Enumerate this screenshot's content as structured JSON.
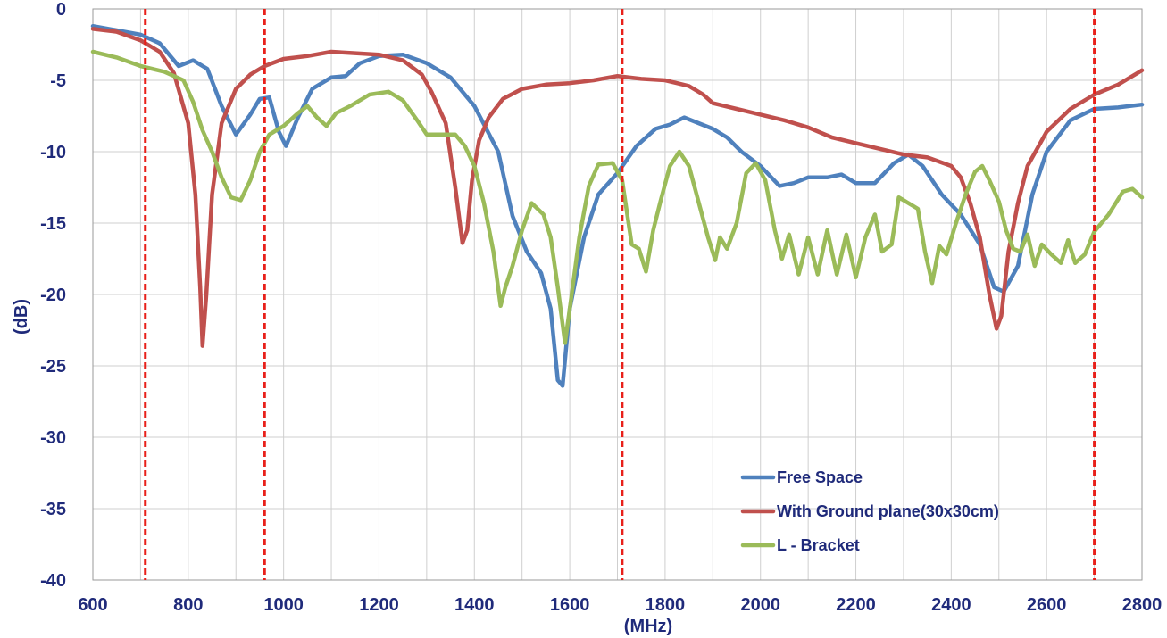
{
  "chart_data": {
    "type": "line",
    "xlabel": "(MHz)",
    "ylabel": "(dB)",
    "xlim": [
      600,
      2800
    ],
    "ylim": [
      -40,
      0
    ],
    "x_ticks": [
      "600",
      "800",
      "1000",
      "1200",
      "1400",
      "1600",
      "1800",
      "2000",
      "2200",
      "2400",
      "2600",
      "2800"
    ],
    "y_ticks": [
      "0",
      "-5",
      "-10",
      "-15",
      "-20",
      "-25",
      "-30",
      "-35",
      "-40"
    ],
    "grid": true,
    "legend_position": "bottom-right",
    "reference_lines_x": [
      710,
      960,
      1710,
      2700
    ],
    "reference_line_color": "#e8201a",
    "series": [
      {
        "name": "Free Space",
        "color": "#4f81bd",
        "points": [
          [
            600,
            -1.2
          ],
          [
            650,
            -1.5
          ],
          [
            700,
            -1.8
          ],
          [
            740,
            -2.4
          ],
          [
            780,
            -4.0
          ],
          [
            810,
            -3.6
          ],
          [
            840,
            -4.2
          ],
          [
            870,
            -6.8
          ],
          [
            900,
            -8.8
          ],
          [
            930,
            -7.4
          ],
          [
            950,
            -6.3
          ],
          [
            970,
            -6.2
          ],
          [
            990,
            -8.6
          ],
          [
            1005,
            -9.6
          ],
          [
            1030,
            -7.6
          ],
          [
            1060,
            -5.6
          ],
          [
            1100,
            -4.8
          ],
          [
            1130,
            -4.7
          ],
          [
            1160,
            -3.8
          ],
          [
            1200,
            -3.3
          ],
          [
            1250,
            -3.2
          ],
          [
            1300,
            -3.8
          ],
          [
            1350,
            -4.8
          ],
          [
            1400,
            -6.8
          ],
          [
            1450,
            -10.0
          ],
          [
            1480,
            -14.5
          ],
          [
            1510,
            -17.0
          ],
          [
            1540,
            -18.5
          ],
          [
            1560,
            -21.0
          ],
          [
            1575,
            -26.0
          ],
          [
            1585,
            -26.4
          ],
          [
            1600,
            -21.0
          ],
          [
            1630,
            -16.0
          ],
          [
            1660,
            -13.0
          ],
          [
            1700,
            -11.5
          ],
          [
            1740,
            -9.6
          ],
          [
            1780,
            -8.4
          ],
          [
            1810,
            -8.1
          ],
          [
            1840,
            -7.6
          ],
          [
            1870,
            -8.0
          ],
          [
            1900,
            -8.4
          ],
          [
            1930,
            -9.0
          ],
          [
            1960,
            -10.0
          ],
          [
            2000,
            -11.0
          ],
          [
            2040,
            -12.4
          ],
          [
            2070,
            -12.2
          ],
          [
            2100,
            -11.8
          ],
          [
            2140,
            -11.8
          ],
          [
            2170,
            -11.6
          ],
          [
            2200,
            -12.2
          ],
          [
            2240,
            -12.2
          ],
          [
            2280,
            -10.8
          ],
          [
            2310,
            -10.2
          ],
          [
            2340,
            -11.0
          ],
          [
            2380,
            -13.0
          ],
          [
            2420,
            -14.4
          ],
          [
            2460,
            -16.5
          ],
          [
            2490,
            -19.5
          ],
          [
            2510,
            -19.8
          ],
          [
            2540,
            -18.0
          ],
          [
            2570,
            -13.0
          ],
          [
            2600,
            -10.0
          ],
          [
            2650,
            -7.8
          ],
          [
            2700,
            -7.0
          ],
          [
            2750,
            -6.9
          ],
          [
            2800,
            -6.7
          ]
        ]
      },
      {
        "name": "With Ground plane(30x30cm)",
        "color": "#c0504d",
        "points": [
          [
            600,
            -1.4
          ],
          [
            650,
            -1.6
          ],
          [
            700,
            -2.2
          ],
          [
            740,
            -3.0
          ],
          [
            770,
            -4.5
          ],
          [
            800,
            -8.0
          ],
          [
            815,
            -13.0
          ],
          [
            825,
            -19.5
          ],
          [
            830,
            -23.6
          ],
          [
            838,
            -20.0
          ],
          [
            850,
            -13.0
          ],
          [
            870,
            -8.0
          ],
          [
            900,
            -5.6
          ],
          [
            930,
            -4.6
          ],
          [
            960,
            -4.0
          ],
          [
            1000,
            -3.5
          ],
          [
            1050,
            -3.3
          ],
          [
            1100,
            -3.0
          ],
          [
            1150,
            -3.1
          ],
          [
            1200,
            -3.2
          ],
          [
            1250,
            -3.6
          ],
          [
            1290,
            -4.6
          ],
          [
            1310,
            -5.8
          ],
          [
            1340,
            -8.0
          ],
          [
            1360,
            -12.5
          ],
          [
            1375,
            -16.4
          ],
          [
            1385,
            -15.5
          ],
          [
            1395,
            -12.0
          ],
          [
            1410,
            -9.2
          ],
          [
            1430,
            -7.6
          ],
          [
            1460,
            -6.3
          ],
          [
            1500,
            -5.6
          ],
          [
            1550,
            -5.3
          ],
          [
            1600,
            -5.2
          ],
          [
            1650,
            -5.0
          ],
          [
            1700,
            -4.7
          ],
          [
            1750,
            -4.9
          ],
          [
            1800,
            -5.0
          ],
          [
            1850,
            -5.4
          ],
          [
            1880,
            -6.0
          ],
          [
            1900,
            -6.6
          ],
          [
            1950,
            -7.0
          ],
          [
            2000,
            -7.4
          ],
          [
            2050,
            -7.8
          ],
          [
            2100,
            -8.3
          ],
          [
            2150,
            -9.0
          ],
          [
            2200,
            -9.4
          ],
          [
            2250,
            -9.8
          ],
          [
            2300,
            -10.2
          ],
          [
            2350,
            -10.4
          ],
          [
            2400,
            -11.0
          ],
          [
            2420,
            -11.8
          ],
          [
            2440,
            -13.6
          ],
          [
            2460,
            -16.0
          ],
          [
            2480,
            -20.0
          ],
          [
            2495,
            -22.4
          ],
          [
            2505,
            -21.5
          ],
          [
            2520,
            -17.0
          ],
          [
            2540,
            -13.6
          ],
          [
            2560,
            -11.0
          ],
          [
            2600,
            -8.6
          ],
          [
            2650,
            -7.0
          ],
          [
            2700,
            -6.0
          ],
          [
            2750,
            -5.3
          ],
          [
            2800,
            -4.3
          ]
        ]
      },
      {
        "name": "L - Bracket",
        "color": "#9bbb59",
        "points": [
          [
            600,
            -3.0
          ],
          [
            650,
            -3.4
          ],
          [
            700,
            -4.0
          ],
          [
            750,
            -4.4
          ],
          [
            790,
            -5.0
          ],
          [
            810,
            -6.5
          ],
          [
            830,
            -8.5
          ],
          [
            850,
            -10.0
          ],
          [
            870,
            -11.8
          ],
          [
            890,
            -13.2
          ],
          [
            910,
            -13.4
          ],
          [
            930,
            -12.0
          ],
          [
            950,
            -10.0
          ],
          [
            970,
            -8.8
          ],
          [
            1000,
            -8.2
          ],
          [
            1030,
            -7.3
          ],
          [
            1050,
            -6.8
          ],
          [
            1070,
            -7.6
          ],
          [
            1090,
            -8.2
          ],
          [
            1110,
            -7.3
          ],
          [
            1140,
            -6.8
          ],
          [
            1180,
            -6.0
          ],
          [
            1220,
            -5.8
          ],
          [
            1250,
            -6.4
          ],
          [
            1280,
            -7.8
          ],
          [
            1300,
            -8.8
          ],
          [
            1330,
            -8.8
          ],
          [
            1360,
            -8.8
          ],
          [
            1380,
            -9.6
          ],
          [
            1400,
            -11.0
          ],
          [
            1420,
            -13.6
          ],
          [
            1440,
            -17.0
          ],
          [
            1455,
            -20.8
          ],
          [
            1465,
            -19.5
          ],
          [
            1480,
            -18.0
          ],
          [
            1500,
            -15.5
          ],
          [
            1520,
            -13.6
          ],
          [
            1545,
            -14.4
          ],
          [
            1560,
            -16.0
          ],
          [
            1575,
            -19.5
          ],
          [
            1590,
            -23.4
          ],
          [
            1600,
            -21.0
          ],
          [
            1620,
            -16.0
          ],
          [
            1640,
            -12.4
          ],
          [
            1660,
            -10.9
          ],
          [
            1690,
            -10.8
          ],
          [
            1710,
            -12.0
          ],
          [
            1730,
            -16.5
          ],
          [
            1745,
            -16.8
          ],
          [
            1760,
            -18.4
          ],
          [
            1775,
            -15.5
          ],
          [
            1790,
            -13.5
          ],
          [
            1810,
            -11.0
          ],
          [
            1830,
            -10.0
          ],
          [
            1850,
            -11.0
          ],
          [
            1870,
            -13.5
          ],
          [
            1890,
            -16.0
          ],
          [
            1905,
            -17.6
          ],
          [
            1915,
            -16.0
          ],
          [
            1930,
            -16.8
          ],
          [
            1950,
            -15.0
          ],
          [
            1970,
            -11.5
          ],
          [
            1990,
            -10.8
          ],
          [
            2010,
            -12.0
          ],
          [
            2030,
            -15.5
          ],
          [
            2045,
            -17.5
          ],
          [
            2060,
            -15.8
          ],
          [
            2080,
            -18.6
          ],
          [
            2100,
            -16.0
          ],
          [
            2120,
            -18.6
          ],
          [
            2140,
            -15.5
          ],
          [
            2160,
            -18.6
          ],
          [
            2180,
            -15.8
          ],
          [
            2200,
            -18.8
          ],
          [
            2220,
            -16.0
          ],
          [
            2240,
            -14.4
          ],
          [
            2255,
            -17.0
          ],
          [
            2275,
            -16.5
          ],
          [
            2290,
            -13.2
          ],
          [
            2310,
            -13.6
          ],
          [
            2330,
            -14.0
          ],
          [
            2345,
            -17.0
          ],
          [
            2360,
            -19.2
          ],
          [
            2375,
            -16.6
          ],
          [
            2390,
            -17.2
          ],
          [
            2410,
            -15.0
          ],
          [
            2430,
            -13.0
          ],
          [
            2450,
            -11.4
          ],
          [
            2465,
            -11.0
          ],
          [
            2480,
            -12.0
          ],
          [
            2500,
            -13.5
          ],
          [
            2515,
            -15.5
          ],
          [
            2530,
            -16.8
          ],
          [
            2545,
            -17.0
          ],
          [
            2560,
            -15.8
          ],
          [
            2575,
            -18.0
          ],
          [
            2590,
            -16.5
          ],
          [
            2610,
            -17.2
          ],
          [
            2630,
            -17.8
          ],
          [
            2645,
            -16.2
          ],
          [
            2660,
            -17.8
          ],
          [
            2680,
            -17.2
          ],
          [
            2700,
            -15.6
          ],
          [
            2730,
            -14.4
          ],
          [
            2760,
            -12.8
          ],
          [
            2780,
            -12.6
          ],
          [
            2800,
            -13.2
          ]
        ]
      }
    ]
  }
}
